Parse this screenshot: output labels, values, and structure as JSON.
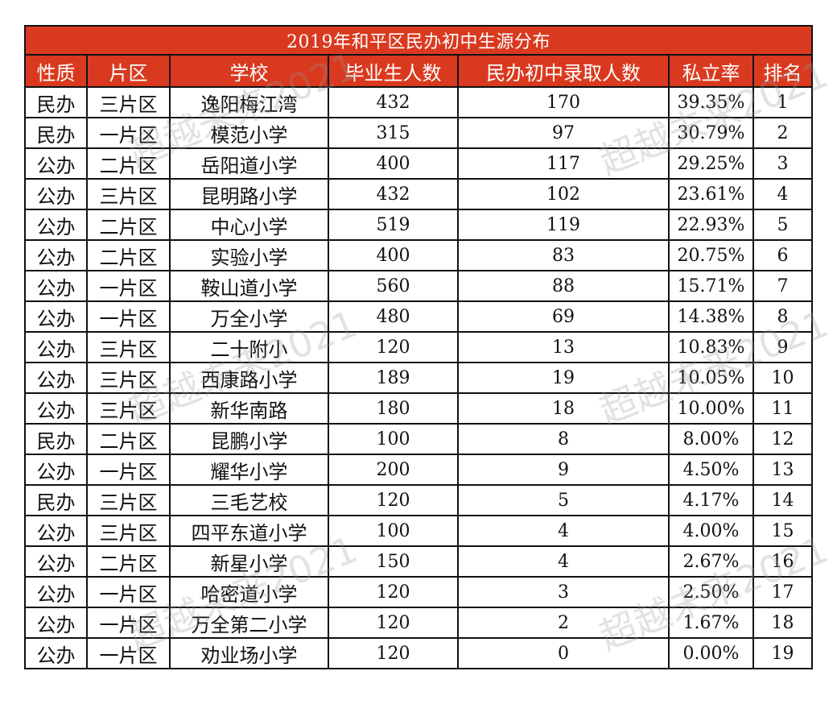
{
  "title": "2019年和平区民办初中生源分布",
  "columns": [
    "性质",
    "片区",
    "学校",
    "毕业生人数",
    "民办初中录取人数",
    "私立率",
    "排名"
  ],
  "rows": [
    [
      "民办",
      "三片区",
      "逸阳梅江湾",
      "432",
      "170",
      "39.35%",
      "1"
    ],
    [
      "民办",
      "一片区",
      "模范小学",
      "315",
      "97",
      "30.79%",
      "2"
    ],
    [
      "公办",
      "二片区",
      "岳阳道小学",
      "400",
      "117",
      "29.25%",
      "3"
    ],
    [
      "公办",
      "三片区",
      "昆明路小学",
      "432",
      "102",
      "23.61%",
      "4"
    ],
    [
      "公办",
      "二片区",
      "中心小学",
      "519",
      "119",
      "22.93%",
      "5"
    ],
    [
      "公办",
      "二片区",
      "实验小学",
      "400",
      "83",
      "20.75%",
      "6"
    ],
    [
      "公办",
      "一片区",
      "鞍山道小学",
      "560",
      "88",
      "15.71%",
      "7"
    ],
    [
      "公办",
      "一片区",
      "万全小学",
      "480",
      "69",
      "14.38%",
      "8"
    ],
    [
      "公办",
      "三片区",
      "二十附小",
      "120",
      "13",
      "10.83%",
      "9"
    ],
    [
      "公办",
      "三片区",
      "西康路小学",
      "189",
      "19",
      "10.05%",
      "10"
    ],
    [
      "公办",
      "三片区",
      "新华南路",
      "180",
      "18",
      "10.00%",
      "11"
    ],
    [
      "民办",
      "二片区",
      "昆鹏小学",
      "100",
      "8",
      "8.00%",
      "12"
    ],
    [
      "公办",
      "一片区",
      "耀华小学",
      "200",
      "9",
      "4.50%",
      "13"
    ],
    [
      "民办",
      "三片区",
      "三毛艺校",
      "120",
      "5",
      "4.17%",
      "14"
    ],
    [
      "公办",
      "三片区",
      "四平东道小学",
      "100",
      "4",
      "4.00%",
      "15"
    ],
    [
      "公办",
      "二片区",
      "新星小学",
      "150",
      "4",
      "2.67%",
      "16"
    ],
    [
      "公办",
      "一片区",
      "哈密道小学",
      "120",
      "3",
      "2.50%",
      "17"
    ],
    [
      "公办",
      "一片区",
      "万全第二小学",
      "120",
      "2",
      "1.67%",
      "18"
    ],
    [
      "公办",
      "一片区",
      "劝业场小学",
      "120",
      "0",
      "0.00%",
      "19"
    ]
  ],
  "watermark": "超越未来2021",
  "colors": {
    "header_bg": "#d93a1f",
    "header_text": "#ffffff",
    "border": "#111111"
  }
}
